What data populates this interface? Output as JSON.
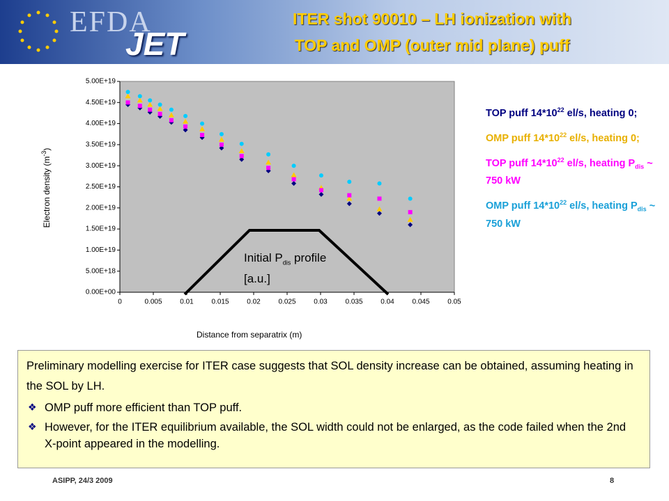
{
  "header": {
    "title_lines": [
      "ITER shot 90010 – LH ionization with",
      "TOP and OMP (outer mid plane) puff"
    ],
    "logo_top": "EFDA",
    "logo_bottom": "JET"
  },
  "chart_data": {
    "type": "scatter",
    "xlabel": "Distance from separatrix (m)",
    "ylabel": [
      {
        "text": "Electron density (m"
      },
      {
        "sup": "-3"
      },
      {
        "text": ")"
      }
    ],
    "annotation": [
      {
        "text": "Initial P"
      },
      {
        "sub": "dis"
      },
      {
        "text": " profile [a.u.]"
      }
    ],
    "x": [
      0.0012,
      0.003,
      0.0045,
      0.006,
      0.0077,
      0.0098,
      0.0123,
      0.0152,
      0.0182,
      0.0222,
      0.026,
      0.0301,
      0.0343,
      0.0388,
      0.0434
    ],
    "series": [
      {
        "name": [
          {
            "text": "TOP puff 14*10"
          },
          {
            "sup": "22"
          },
          {
            "text": " el/s, heating 0;"
          }
        ],
        "color": "#000080",
        "marker": "diamond",
        "values": [
          4.45e+19,
          4.37e+19,
          4.27e+19,
          4.17e+19,
          4.03e+19,
          3.85e+19,
          3.67e+19,
          3.42e+19,
          3.15e+19,
          2.88e+19,
          2.58e+19,
          2.32e+19,
          2.1e+19,
          1.87e+19,
          1.6e+19
        ]
      },
      {
        "name": [
          {
            "text": "OMP puff 14*10"
          },
          {
            "sup": "22"
          },
          {
            "text": " el/s, heating 0;"
          }
        ],
        "color": "#ffcc00",
        "marker": "triangle",
        "values": [
          4.65e+19,
          4.55e+19,
          4.45e+19,
          4.35e+19,
          4.2e+19,
          4.05e+19,
          3.87e+19,
          3.62e+19,
          3.35e+19,
          3.08e+19,
          2.78e+19,
          2.48e+19,
          2.22e+19,
          1.97e+19,
          1.72e+19
        ]
      },
      {
        "name": [
          {
            "text": "TOP puff 14*10"
          },
          {
            "sup": "22"
          },
          {
            "text": " el/s, heating P"
          },
          {
            "sub": "dis"
          },
          {
            "text": " ~ 750 kW"
          }
        ],
        "color": "#ff00ff",
        "marker": "square",
        "values": [
          4.5e+19,
          4.42e+19,
          4.33e+19,
          4.23e+19,
          4.08e+19,
          3.93e+19,
          3.73e+19,
          3.5e+19,
          3.23e+19,
          2.95e+19,
          2.68e+19,
          2.42e+19,
          2.3e+19,
          2.22e+19,
          1.9e+19
        ]
      },
      {
        "name": [
          {
            "text": "OMP puff 14*10"
          },
          {
            "sup": "22"
          },
          {
            "text": " el/s, heating P"
          },
          {
            "sub": "dis"
          },
          {
            "text": " ~ 750 kW"
          }
        ],
        "color": "#00ccff",
        "marker": "circle",
        "values": [
          4.75e+19,
          4.65e+19,
          4.55e+19,
          4.45e+19,
          4.33e+19,
          4.18e+19,
          4e+19,
          3.75e+19,
          3.52e+19,
          3.27e+19,
          3e+19,
          2.77e+19,
          2.62e+19,
          2.58e+19,
          2.22e+19
        ]
      }
    ],
    "xlim": [
      0,
      0.05
    ],
    "xticks": [
      0,
      0.005,
      0.01,
      0.015,
      0.02,
      0.025,
      0.03,
      0.035,
      0.04,
      0.045,
      0.05
    ],
    "ylim": [
      0,
      5e+19
    ],
    "yticks": [
      {
        "value": 0,
        "label": "0.00E+00"
      },
      {
        "value": 5e+18,
        "label": "5.00E+18"
      },
      {
        "value": 1e+19,
        "label": "1.00E+19"
      },
      {
        "value": 1.5e+19,
        "label": "1.50E+19"
      },
      {
        "value": 2e+19,
        "label": "2.00E+19"
      },
      {
        "value": 2.5e+19,
        "label": "2.50E+19"
      },
      {
        "value": 3e+19,
        "label": "3.00E+19"
      },
      {
        "value": 3.5e+19,
        "label": "3.50E+19"
      },
      {
        "value": 4e+19,
        "label": "4.00E+19"
      },
      {
        "value": 4.5e+19,
        "label": "4.50E+19"
      },
      {
        "value": 5e+19,
        "label": "5.00E+19"
      }
    ],
    "grid": false
  },
  "textbox": {
    "paragraph": "Preliminary modelling exercise for ITER case suggests that SOL density increase can be obtained, assuming heating in the SOL by LH.",
    "bullets": [
      "OMP puff more efficient than TOP puff.",
      "However, for the ITER equilibrium available, the SOL width could not be enlarged, as the code failed when the 2nd X-point appeared in the modelling."
    ]
  },
  "footer": {
    "left": "ASIPP, 24/3 2009",
    "page": "8"
  }
}
